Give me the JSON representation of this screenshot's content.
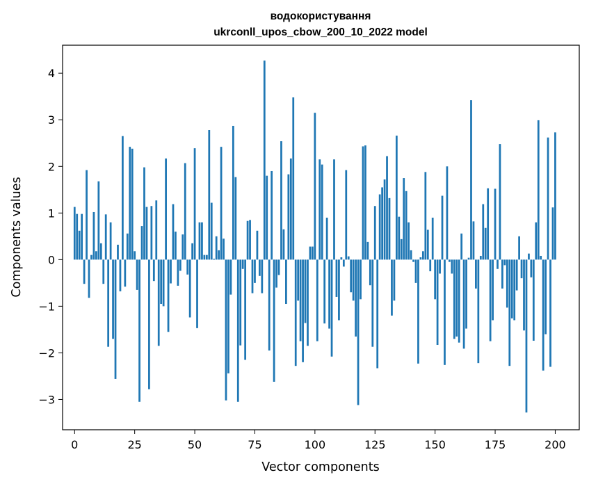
{
  "chart_data": {
    "type": "bar",
    "title": "водокористування",
    "subtitle": "ukrconll_upos_cbow_200_10_2022 model",
    "xlabel": "Vector components",
    "ylabel": "Components values",
    "xlim": [
      -5,
      210
    ],
    "ylim": [
      -3.65,
      4.6
    ],
    "xticks": [
      0,
      25,
      50,
      75,
      100,
      125,
      150,
      175,
      200
    ],
    "yticks": [
      -3,
      -2,
      -1,
      0,
      1,
      2,
      3,
      4
    ],
    "ytick_labels": [
      "−3",
      "−2",
      "−1",
      "0",
      "1",
      "2",
      "3",
      "4"
    ],
    "grid": false,
    "bar_color": "#1f77b4",
    "series": [
      {
        "values": [
          1.13,
          0.98,
          0.62,
          0.98,
          -0.52,
          1.92,
          -0.82,
          0.1,
          1.02,
          0.18,
          1.68,
          0.35,
          -0.52,
          0.97,
          -1.87,
          0.8,
          -1.7,
          -2.56,
          0.32,
          -0.68,
          2.65,
          -0.58,
          0.56,
          2.42,
          2.38,
          0.18,
          -0.65,
          -3.05,
          0.72,
          1.98,
          1.13,
          -2.78,
          1.15,
          -0.46,
          1.27,
          -1.85,
          -0.95,
          -1.0,
          2.17,
          -1.55,
          -0.51,
          1.19,
          0.6,
          -0.56,
          -0.24,
          0.54,
          2.07,
          -0.32,
          -1.24,
          0.35,
          2.39,
          -1.47,
          0.8,
          0.8,
          0.1,
          0.1,
          2.78,
          1.22,
          0.02,
          0.5,
          0.2,
          2.42,
          0.45,
          -3.02,
          -2.44,
          -0.75,
          2.87,
          1.77,
          -3.05,
          -1.84,
          -0.2,
          -2.15,
          0.83,
          0.85,
          -0.72,
          -0.5,
          0.62,
          -0.35,
          -0.72,
          4.27,
          1.8,
          -1.95,
          1.9,
          -2.62,
          -0.6,
          -0.33,
          2.54,
          0.65,
          -0.95,
          1.83,
          2.17,
          3.48,
          -2.28,
          -0.88,
          -1.75,
          -2.2,
          -1.36,
          -1.85,
          0.28,
          0.28,
          3.15,
          -1.75,
          2.15,
          2.04,
          -1.37,
          0.9,
          -1.48,
          -2.08,
          2.15,
          -0.8,
          -1.3,
          0.05,
          -0.15,
          1.92,
          0.07,
          -0.7,
          -0.88,
          -1.65,
          -3.12,
          -0.85,
          2.43,
          2.45,
          0.38,
          -0.55,
          -1.87,
          1.15,
          -2.33,
          1.4,
          1.55,
          1.72,
          2.22,
          1.32,
          -1.2,
          -0.88,
          2.66,
          0.92,
          0.44,
          1.75,
          1.47,
          0.8,
          0.2,
          -0.05,
          -0.5,
          -2.23,
          0.05,
          0.18,
          1.88,
          0.64,
          -0.25,
          0.9,
          -0.85,
          -1.83,
          -0.3,
          1.37,
          -2.26,
          2.0,
          -0.05,
          -0.3,
          -1.7,
          -1.65,
          -1.78,
          0.56,
          -1.91,
          -1.48,
          0.04,
          3.42,
          0.82,
          -0.62,
          -2.22,
          0.08,
          1.19,
          0.68,
          1.53,
          -1.75,
          -1.3,
          1.52,
          -0.2,
          2.48,
          -0.62,
          -0.12,
          -1.03,
          -2.28,
          -1.26,
          -1.3,
          -0.66,
          0.5,
          -0.4,
          -1.52,
          -3.28,
          0.13,
          -0.38,
          -1.74,
          0.8,
          2.99,
          0.08,
          -2.38,
          -1.6,
          2.62,
          -2.3,
          1.12,
          2.73
        ]
      }
    ]
  }
}
